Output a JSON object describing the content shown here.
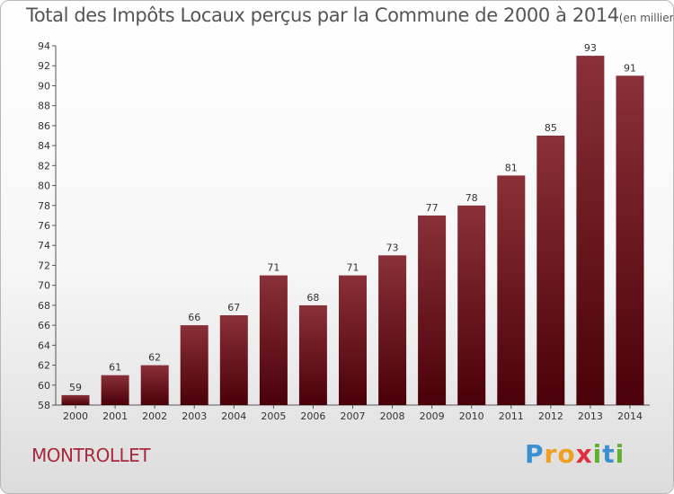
{
  "chart_data": {
    "type": "bar",
    "title": "Total des Impôts Locaux perçus par la Commune de 2000 à 2014",
    "unit_note": "(en milliers d'€)",
    "categories": [
      "2000",
      "2001",
      "2002",
      "2003",
      "2004",
      "2005",
      "2006",
      "2007",
      "2008",
      "2009",
      "2010",
      "2011",
      "2012",
      "2013",
      "2014"
    ],
    "values": [
      59,
      61,
      62,
      66,
      67,
      71,
      68,
      71,
      73,
      77,
      78,
      81,
      85,
      93,
      91
    ],
    "ylim": [
      58,
      94
    ],
    "yticks": [
      58,
      60,
      62,
      64,
      66,
      68,
      70,
      72,
      74,
      76,
      78,
      80,
      82,
      84,
      86,
      88,
      90,
      92,
      94
    ],
    "xlabel": "",
    "ylabel": "",
    "grid": false,
    "bar_color_top": "#8a3038",
    "bar_color_bottom": "#4a0008"
  },
  "commune_name": "MONTROLLET",
  "logo": {
    "letters": [
      "P",
      "r",
      "o",
      "x",
      "i",
      "t",
      "i"
    ],
    "colors": [
      "#3a8fd0",
      "#f0a020",
      "#f0a020",
      "#e03040",
      "#60b030",
      "#3a8fd0",
      "#60b030"
    ]
  }
}
